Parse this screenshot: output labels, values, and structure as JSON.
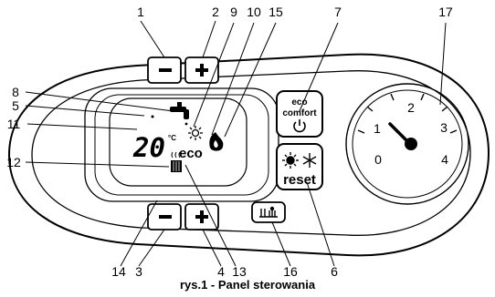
{
  "figure": {
    "caption": "rys.1 - Panel sterowania"
  },
  "callouts": {
    "n1": "1",
    "n2": "2",
    "n3": "3",
    "n4": "4",
    "n5": "5",
    "n6": "6",
    "n7": "7",
    "n8": "8",
    "n9": "9",
    "n10": "10",
    "n11": "11",
    "n12": "12",
    "n13": "13",
    "n14": "14",
    "n15": "15",
    "n16": "16",
    "n17": "17"
  },
  "buttons": {
    "heating_minus": "−",
    "heating_plus": "+",
    "dhw_minus": "−",
    "dhw_plus": "+",
    "eco_comfort_line1": "eco",
    "eco_comfort_line2": "comfort",
    "reset": "reset"
  },
  "display": {
    "temperature": "20",
    "unit": "°C",
    "eco": "eco"
  },
  "dial": {
    "ticks": [
      "0",
      "1",
      "2",
      "3",
      "4"
    ]
  },
  "icons": {
    "tap": "tap-icon",
    "sun": "sun-icon",
    "flame": "flame-icon",
    "chimney": "chimney-icon",
    "power": "power-icon",
    "snowflake": "snowflake-icon",
    "plant": "heating-system-icon"
  }
}
